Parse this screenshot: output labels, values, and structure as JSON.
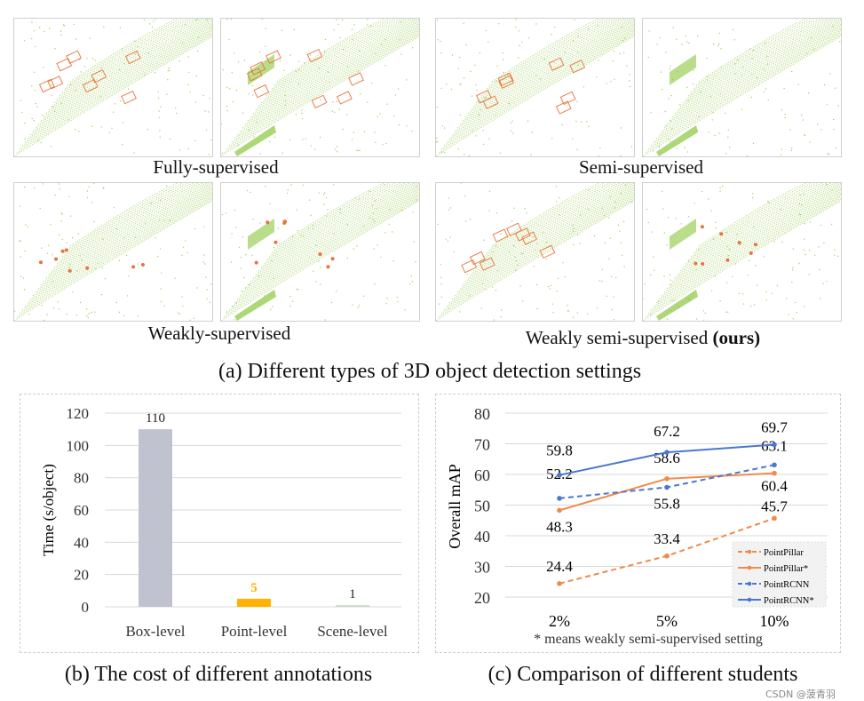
{
  "panel_a": {
    "caption": "(a) Different types of 3D object detection settings",
    "settings": [
      {
        "label": "Fully-supervised",
        "views": [
          "boxes",
          "boxes"
        ]
      },
      {
        "label": "Semi-supervised",
        "views": [
          "boxes",
          "none"
        ]
      },
      {
        "label": "Weakly-supervised",
        "views": [
          "points",
          "points"
        ]
      },
      {
        "label": "Weakly semi-supervised",
        "label_bold": "(ours)",
        "views": [
          "boxes",
          "points"
        ]
      }
    ],
    "colors": {
      "cloud": "#8cc63f",
      "annotation": "#e8743b"
    }
  },
  "chart_data": [
    {
      "type": "bar",
      "caption": "(b) The cost of different annotations",
      "ylabel": "Time (s/object)",
      "ylim": [
        0,
        120
      ],
      "yticks": [
        0,
        20,
        40,
        60,
        80,
        100,
        120
      ],
      "categories": [
        "Box-level",
        "Point-level",
        "Scene-level"
      ],
      "values": [
        110,
        5,
        1
      ],
      "data_labels": [
        "110",
        "5",
        "1"
      ],
      "colors": [
        "#c0c2d0",
        "#ffb300",
        "#c9d8c5"
      ],
      "label_colors": [
        "#222222",
        "#ffb300",
        "#222222"
      ],
      "grid": true
    },
    {
      "type": "line",
      "caption": "(c) Comparison of different students",
      "ylabel": "Overall  mAP",
      "ylim": [
        20,
        80
      ],
      "yticks": [
        20,
        30,
        40,
        50,
        60,
        70,
        80
      ],
      "categories": [
        "2%",
        "5%",
        "10%"
      ],
      "note": "* means weakly semi-supervised setting",
      "grid": true,
      "legend": "bottom-right",
      "series": [
        {
          "name": "PointPillar",
          "values": [
            24.4,
            33.4,
            45.7
          ],
          "labels": [
            "24.4",
            "33.4",
            "45.7"
          ],
          "color": "#f08a4b",
          "dashed": true
        },
        {
          "name": "PointPillar*",
          "values": [
            48.3,
            58.6,
            60.4
          ],
          "labels": [
            "48.3",
            "58.6",
            "60.4"
          ],
          "color": "#f08a4b",
          "dashed": false
        },
        {
          "name": "PointRCNN",
          "values": [
            52.2,
            55.8,
            63.1
          ],
          "labels": [
            "52.2",
            "55.8",
            "63.1"
          ],
          "color": "#4a78d0",
          "dashed": true
        },
        {
          "name": "PointRCNN*",
          "values": [
            59.8,
            67.2,
            69.7
          ],
          "labels": [
            "59.8",
            "67.2",
            "69.7"
          ],
          "color": "#4a78d0",
          "dashed": false
        }
      ]
    }
  ],
  "watermark": "CSDN @菠青羽"
}
